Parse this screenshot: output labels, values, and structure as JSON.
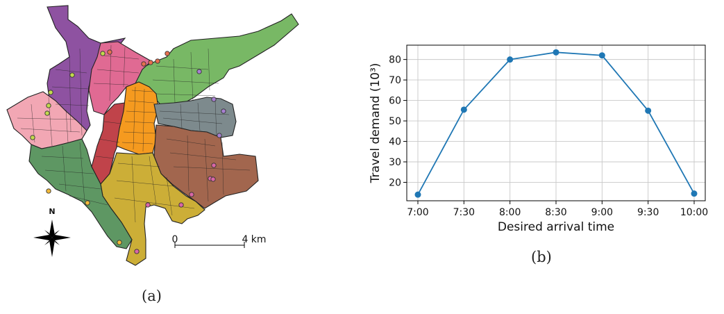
{
  "figure": {
    "caption_a": "(a)",
    "caption_b": "(b)"
  },
  "map": {
    "north_label": "N",
    "scale_start": "0",
    "scale_end": "4 km",
    "colors": {
      "purple": "#8e52a1",
      "pink": "#e06a93",
      "light_green": "#78b865",
      "salmon": "#f2a7b4",
      "red": "#c0434a",
      "orange": "#f59a1f",
      "gray": "#7d8a8d",
      "brown": "#a2664e",
      "gold": "#ccae37",
      "dark_green": "#5e9763"
    }
  },
  "chart_data": {
    "type": "line",
    "categories": [
      "7:00",
      "7:30",
      "8:00",
      "8:30",
      "9:00",
      "9:30",
      "10:00"
    ],
    "values": [
      14,
      55.5,
      80,
      83.5,
      82,
      55,
      14.5
    ],
    "xlabel": "Desired arrival time",
    "ylabel": "Travel demand (10³)",
    "ylim": [
      11,
      87
    ],
    "yticks": [
      20,
      30,
      40,
      50,
      60,
      70,
      80
    ],
    "grid": true,
    "line_color": "#1f77b4"
  }
}
